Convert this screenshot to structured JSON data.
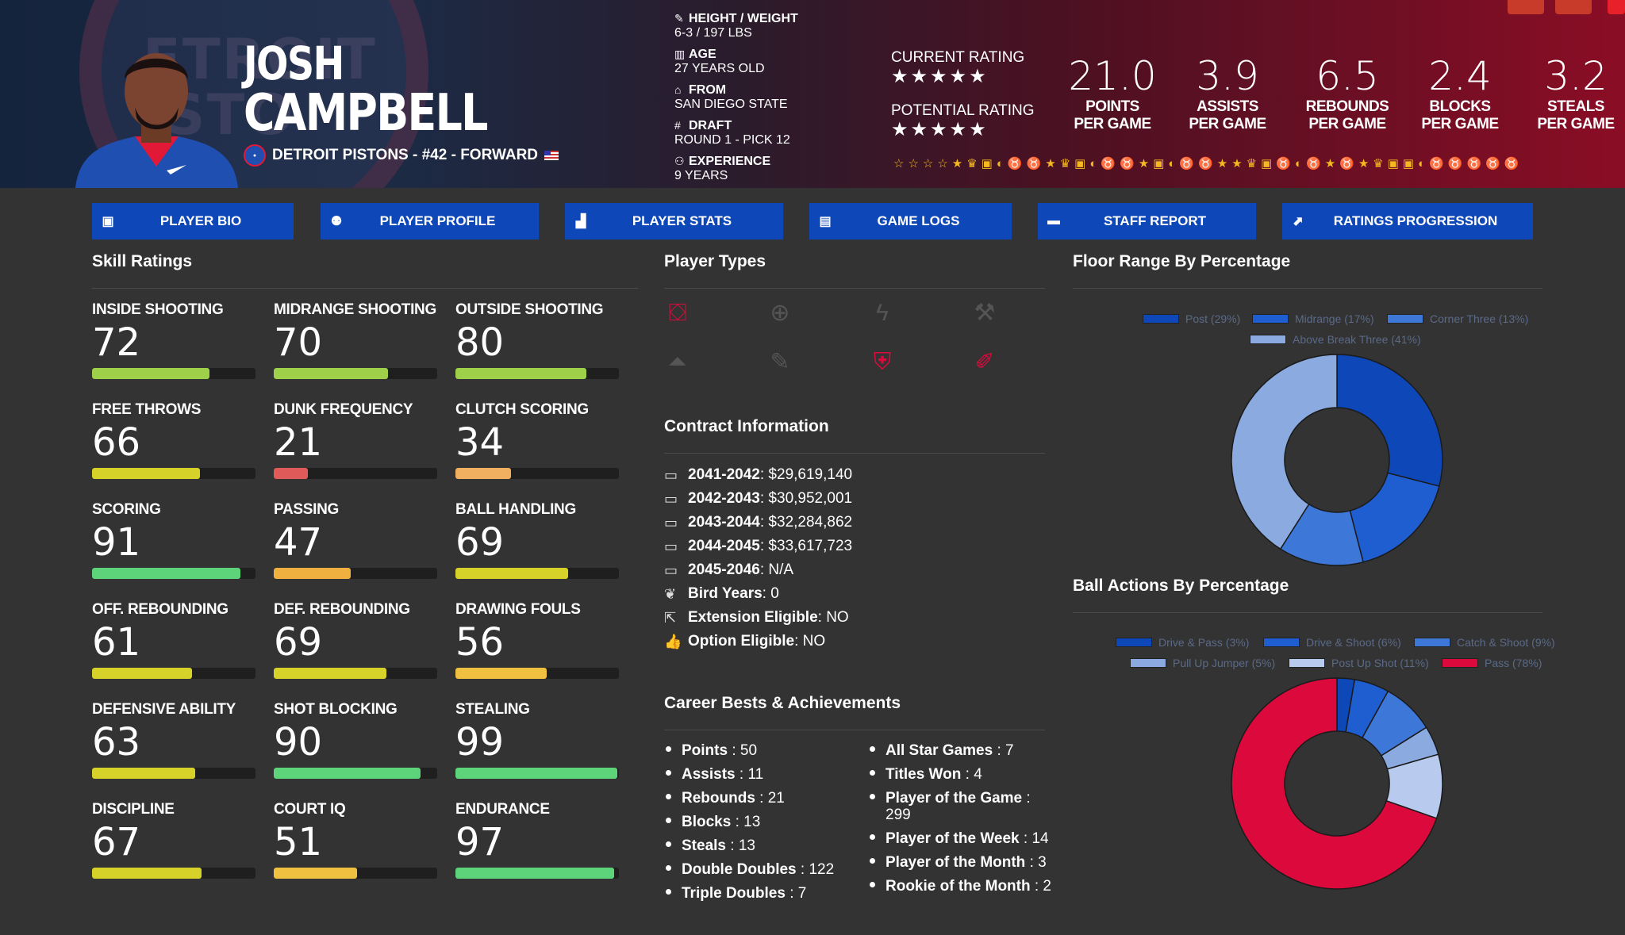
{
  "player": {
    "first_name": "JOSH",
    "last_name": "CAMPBELL",
    "team_line": "DETROIT PISTONS - #42 - FORWARD",
    "logo_text": "ETROIT\nISTO"
  },
  "bio": {
    "height_weight_label": "HEIGHT / WEIGHT",
    "height_weight": "6-3 / 197 LBS",
    "age_label": "AGE",
    "age": "27 YEARS OLD",
    "from_label": "FROM",
    "from": "SAN DIEGO STATE",
    "draft_label": "DRAFT",
    "draft": "ROUND 1 - PICK 12",
    "experience_label": "EXPERIENCE",
    "experience": "9 YEARS"
  },
  "ratings": {
    "current_label": "CURRENT RATING",
    "current_stars": "★★★★★",
    "potential_label": "POTENTIAL RATING",
    "potential_stars": "★★★★★"
  },
  "stats": [
    {
      "value": "21.0",
      "l1": "POINTS",
      "l2": "PER GAME"
    },
    {
      "value": "3.9",
      "l1": "ASSISTS",
      "l2": "PER GAME"
    },
    {
      "value": "6.5",
      "l1": "REBOUNDS",
      "l2": "PER GAME"
    },
    {
      "value": "2.4",
      "l1": "BLOCKS",
      "l2": "PER GAME"
    },
    {
      "value": "3.2",
      "l1": "STEALS",
      "l2": "PER GAME"
    }
  ],
  "badges_icons": "☆☆☆☆★♛▣◐♉♉★♛▣◐♉♉★▣◐♉♉★★♛▣♉◐♉★♉★♛▣▣◐♉♉♉♉♉",
  "tabs": [
    {
      "label": "PLAYER BIO",
      "icon": "id-card-icon"
    },
    {
      "label": "PLAYER PROFILE",
      "icon": "profile-icon"
    },
    {
      "label": "PLAYER STATS",
      "icon": "bar-chart-icon"
    },
    {
      "label": "GAME LOGS",
      "icon": "clipboard-icon"
    },
    {
      "label": "STAFF REPORT",
      "icon": "comment-icon"
    },
    {
      "label": "RATINGS PROGRESSION",
      "icon": "line-chart-icon"
    }
  ],
  "sections": {
    "skill_ratings": "Skill Ratings",
    "player_types": "Player Types",
    "floor_range": "Floor Range By Percentage",
    "contract": "Contract Information",
    "career": "Career Bests & Achievements",
    "ball_actions": "Ball Actions By Percentage"
  },
  "skills": [
    {
      "label": "INSIDE SHOOTING",
      "value": "72",
      "pct": 0.72,
      "color": "#9ed04a"
    },
    {
      "label": "MIDRANGE SHOOTING",
      "value": "70",
      "pct": 0.7,
      "color": "#9ed04a"
    },
    {
      "label": "OUTSIDE SHOOTING",
      "value": "80",
      "pct": 0.8,
      "color": "#9ed04a"
    },
    {
      "label": "FREE THROWS",
      "value": "66",
      "pct": 0.66,
      "color": "#d6d22a"
    },
    {
      "label": "DUNK FREQUENCY",
      "value": "21",
      "pct": 0.21,
      "color": "#e05a5a"
    },
    {
      "label": "CLUTCH SCORING",
      "value": "34",
      "pct": 0.34,
      "color": "#f0b060"
    },
    {
      "label": "SCORING",
      "value": "91",
      "pct": 0.91,
      "color": "#5ed47a"
    },
    {
      "label": "PASSING",
      "value": "47",
      "pct": 0.47,
      "color": "#f0b040"
    },
    {
      "label": "BALL HANDLING",
      "value": "69",
      "pct": 0.69,
      "color": "#d6d22a"
    },
    {
      "label": "OFF. REBOUNDING",
      "value": "61",
      "pct": 0.61,
      "color": "#d6d22a"
    },
    {
      "label": "DEF. REBOUNDING",
      "value": "69",
      "pct": 0.69,
      "color": "#d6d22a"
    },
    {
      "label": "DRAWING FOULS",
      "value": "56",
      "pct": 0.56,
      "color": "#f0c040"
    },
    {
      "label": "DEFENSIVE ABILITY",
      "value": "63",
      "pct": 0.63,
      "color": "#d6d22a"
    },
    {
      "label": "SHOT BLOCKING",
      "value": "90",
      "pct": 0.9,
      "color": "#5ed47a"
    },
    {
      "label": "STEALING",
      "value": "99",
      "pct": 0.99,
      "color": "#5ed47a"
    },
    {
      "label": "DISCIPLINE",
      "value": "67",
      "pct": 0.67,
      "color": "#d6d22a"
    },
    {
      "label": "COURT IQ",
      "value": "51",
      "pct": 0.51,
      "color": "#f0c040"
    },
    {
      "label": "ENDURANCE",
      "value": "97",
      "pct": 0.97,
      "color": "#5ed47a"
    }
  ],
  "player_types": [
    {
      "icon": "basket-icon",
      "active": true
    },
    {
      "icon": "crosshair-icon",
      "active": false
    },
    {
      "icon": "lightning-icon",
      "active": false
    },
    {
      "icon": "hammer-icon",
      "active": false
    },
    {
      "icon": "cone-icon",
      "active": false
    },
    {
      "icon": "wand-icon",
      "active": false
    },
    {
      "icon": "shield-icon",
      "active": true
    },
    {
      "icon": "brush-icon",
      "active": true
    }
  ],
  "contract": [
    {
      "years": "2041-2042",
      "value": " : $29,619,140",
      "icon": "money-icon"
    },
    {
      "years": "2042-2043",
      "value": " : $30,952,001",
      "icon": "money-icon"
    },
    {
      "years": "2043-2044",
      "value": " : $32,284,862",
      "icon": "money-icon"
    },
    {
      "years": "2044-2045",
      "value": " : $33,617,723",
      "icon": "money-icon"
    },
    {
      "years": "2045-2046",
      "value": " : N/A",
      "icon": "money-icon"
    },
    {
      "years": "Bird Years",
      "value": " : 0",
      "icon": "feather-icon"
    },
    {
      "years": "Extension Eligible",
      "value": " : NO",
      "icon": "external-link-icon"
    },
    {
      "years": "Option Eligible",
      "value": " : NO",
      "icon": "thumbs-up-icon"
    }
  ],
  "career_left": [
    {
      "label": "Points",
      "value": " : 50"
    },
    {
      "label": "Assists",
      "value": " : 11"
    },
    {
      "label": "Rebounds",
      "value": " : 21"
    },
    {
      "label": "Blocks",
      "value": " : 13"
    },
    {
      "label": "Steals",
      "value": " : 13"
    },
    {
      "label": "Double Doubles",
      "value": " : 122"
    },
    {
      "label": "Triple Doubles",
      "value": " : 7"
    }
  ],
  "career_right": [
    {
      "label": "All Star Games",
      "value": " : 7"
    },
    {
      "label": "Titles Won",
      "value": " : 4"
    },
    {
      "label": "Player of the Game",
      "value": " :",
      "value2": "299"
    },
    {
      "label": "Player of the Week",
      "value": " : 14"
    },
    {
      "label": "Player of the Month",
      "value": " : 3"
    },
    {
      "label": "Rookie of the Month",
      "value": " : 2"
    }
  ],
  "chart_data": [
    {
      "type": "pie",
      "title": "Floor Range By Percentage",
      "categories": [
        "Post (29%)",
        "Midrange (17%)",
        "Corner Three (13%)",
        "Above Break Three (41%)"
      ],
      "values": [
        29,
        17,
        13,
        41
      ],
      "colors": [
        "#0d47b8",
        "#1f5ed1",
        "#3d78d8",
        "#8aaae0"
      ],
      "legend": "top"
    },
    {
      "type": "pie",
      "title": "Ball Actions By Percentage",
      "categories": [
        "Drive & Pass (3%)",
        "Drive & Shoot (6%)",
        "Catch & Shoot (9%)",
        "Pull Up Jumper (5%)",
        "Post Up Shot (11%)",
        "Pass (78%)"
      ],
      "values": [
        3,
        6,
        9,
        5,
        11,
        78
      ],
      "colors": [
        "#0d47b8",
        "#1f5ed1",
        "#3d78d8",
        "#8aaae0",
        "#b8cbee",
        "#dc0a3c"
      ],
      "legend": "top"
    }
  ]
}
